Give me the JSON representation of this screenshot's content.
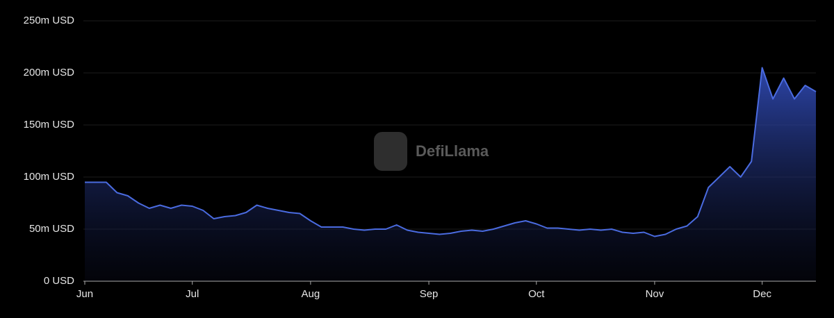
{
  "chart_data": {
    "type": "area",
    "watermark": "DefiLlama",
    "categories": [
      "Jun",
      null,
      null,
      null,
      null,
      null,
      null,
      null,
      null,
      null,
      "Jul",
      null,
      null,
      null,
      null,
      null,
      null,
      null,
      null,
      null,
      null,
      "Aug",
      null,
      null,
      null,
      null,
      null,
      null,
      null,
      null,
      null,
      null,
      "Sep",
      null,
      null,
      null,
      null,
      null,
      null,
      null,
      null,
      null,
      "Oct",
      null,
      null,
      null,
      null,
      null,
      null,
      null,
      null,
      null,
      null,
      "Nov",
      null,
      null,
      null,
      null,
      null,
      null,
      null,
      null,
      null,
      "Dec",
      null,
      null,
      null,
      null,
      null
    ],
    "values": [
      95,
      95,
      95,
      85,
      82,
      75,
      70,
      73,
      70,
      73,
      72,
      68,
      60,
      62,
      63,
      66,
      73,
      70,
      68,
      66,
      65,
      58,
      52,
      52,
      52,
      50,
      49,
      50,
      50,
      54,
      49,
      47,
      46,
      45,
      46,
      48,
      49,
      48,
      50,
      53,
      56,
      58,
      55,
      51,
      51,
      50,
      49,
      50,
      49,
      50,
      47,
      46,
      47,
      43,
      45,
      50,
      53,
      62,
      90,
      100,
      110,
      100,
      115,
      205,
      175,
      195,
      175,
      188,
      182
    ],
    "color": "#4a6be0",
    "ylim": [
      0,
      250
    ],
    "yticks": [
      {
        "value": 0,
        "label": "0 USD"
      },
      {
        "value": 50,
        "label": "50m USD"
      },
      {
        "value": 100,
        "label": "100m USD"
      },
      {
        "value": 150,
        "label": "150m USD"
      },
      {
        "value": 200,
        "label": "200m USD"
      },
      {
        "value": 250,
        "label": "250m USD"
      }
    ],
    "grid": true
  }
}
